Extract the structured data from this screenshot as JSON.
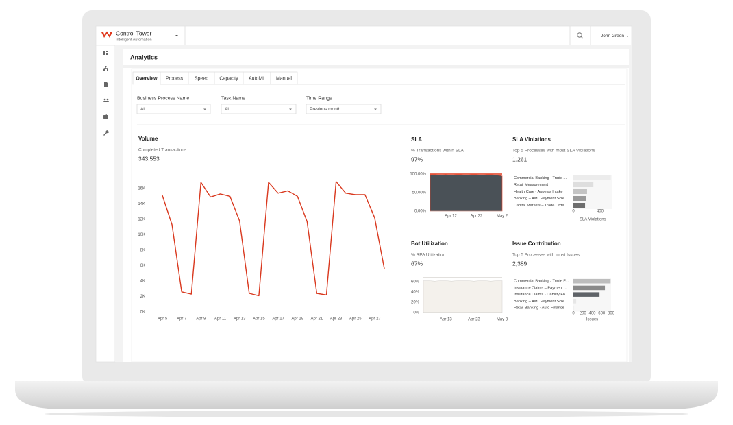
{
  "header": {
    "app_name": "Control Tower",
    "app_subtitle": "Intelligent Automation",
    "user": "John Green"
  },
  "page_title": "Analytics",
  "tabs": [
    "Overview",
    "Process",
    "Speed",
    "Capacity",
    "AutoML",
    "Manual"
  ],
  "filters": [
    {
      "label": "Business Process Name",
      "value": "All"
    },
    {
      "label": "Task Name",
      "value": "All"
    },
    {
      "label": "Time Range",
      "value": "Previous month"
    }
  ],
  "chart_data": [
    {
      "type": "line",
      "title": "Volume",
      "subtitle": "Completed Transactions",
      "summary": "343,553",
      "color": "#d9381e",
      "categories": [
        "Apr 5",
        null,
        "Apr 7",
        null,
        "Apr 9",
        null,
        "Apr 11",
        null,
        "Apr 13",
        null,
        "Apr 15",
        null,
        "Apr 17",
        null,
        "Apr 19",
        null,
        "Apr 21",
        null,
        "Apr 23",
        null,
        "Apr 25",
        null,
        "Apr 27",
        null
      ],
      "values": [
        15100,
        11300,
        2600,
        2300,
        16800,
        14900,
        15300,
        15000,
        11800,
        2400,
        2100,
        16800,
        15400,
        15700,
        15000,
        11700,
        2400,
        2200,
        16900,
        15400,
        15200,
        15200,
        12200,
        5600
      ],
      "ylim": [
        0,
        18000
      ],
      "yticks": [
        {
          "value": 0,
          "label": "0K"
        },
        {
          "value": 2000,
          "label": "2K"
        },
        {
          "value": 4000,
          "label": "4K"
        },
        {
          "value": 6000,
          "label": "6K"
        },
        {
          "value": 8000,
          "label": "8K"
        },
        {
          "value": 10000,
          "label": "10K"
        },
        {
          "value": 12000,
          "label": "12K"
        },
        {
          "value": 14000,
          "label": "14K"
        },
        {
          "value": 16000,
          "label": "16K"
        }
      ]
    },
    {
      "type": "area",
      "title": "SLA",
      "subtitle": "% Transactions within SLA",
      "summary": "97%",
      "color": "#4a5157",
      "line_color": "#e23b1f",
      "categories": [
        null,
        null,
        null,
        null,
        "Apr 12",
        null,
        null,
        null,
        null,
        "Apr 22",
        null,
        null,
        null,
        null,
        "May 2"
      ],
      "values": [
        98,
        98,
        97,
        98,
        97,
        98,
        98,
        97,
        98,
        98,
        97,
        98,
        98,
        97,
        95
      ],
      "ylim": [
        0,
        100
      ],
      "yticks": [
        {
          "value": 0,
          "label": "0.00%"
        },
        {
          "value": 50,
          "label": "50.00%"
        },
        {
          "value": 100,
          "label": "100.00%"
        }
      ]
    },
    {
      "type": "hbar",
      "title": "SLA Violations",
      "subtitle": "Top 5 Processes with most SLA Violations",
      "summary": "1,261",
      "xlabel": "SLA Violations",
      "categories": [
        "Commercial Banking - Trade ...",
        "Retail Measurement",
        "Health Care - Appeals Intake",
        "Banking – AML Payment Scre...",
        "Capital Markets – Trade Orde..."
      ],
      "values": [
        560,
        300,
        205,
        185,
        175
      ],
      "colors": [
        "#ececec",
        "#dedede",
        "#c4c4c4",
        "#9a9a9a",
        "#6e6e6e"
      ],
      "xlim": [
        0,
        580
      ],
      "xticks": [
        0,
        400
      ]
    },
    {
      "type": "area",
      "title": "Bot Utilization",
      "subtitle": "% RPA Utilization",
      "summary": "67%",
      "color": "#f4f1ec",
      "line_color": "#d8d6d2",
      "categories": [
        null,
        null,
        null,
        null,
        "Apr 13",
        null,
        null,
        null,
        null,
        "Apr 23",
        null,
        null,
        null,
        null,
        "May 3"
      ],
      "values": [
        62,
        62,
        61,
        62,
        62,
        61,
        62,
        62,
        62,
        61,
        62,
        62,
        61,
        62,
        62
      ],
      "ylim": [
        0,
        68
      ],
      "yticks": [
        {
          "value": 0,
          "label": "0%"
        },
        {
          "value": 20,
          "label": "20%"
        },
        {
          "value": 40,
          "label": "40%"
        },
        {
          "value": 60,
          "label": "60%"
        }
      ]
    },
    {
      "type": "hbar",
      "title": "Issue Contribution",
      "subtitle": "Top 5 Processes with most Issues",
      "summary": "2,389",
      "xlabel": "Issues",
      "categories": [
        "Commercial Banking - Trade F...",
        "Insurance Claims – Payment ...",
        "Insurance Claims - Liability Fo...",
        "Banking – AML Payment Scre...",
        "Retail Banking · Auto Finance"
      ],
      "values": [
        790,
        670,
        555,
        60,
        15
      ],
      "colors": [
        "#bdbdbd",
        "#8a8a8a",
        "#5f6368",
        "#e6e6e6",
        "#f0f0f0"
      ],
      "xlim": [
        0,
        800
      ],
      "xticks": [
        0,
        200,
        400,
        600,
        800
      ]
    }
  ]
}
